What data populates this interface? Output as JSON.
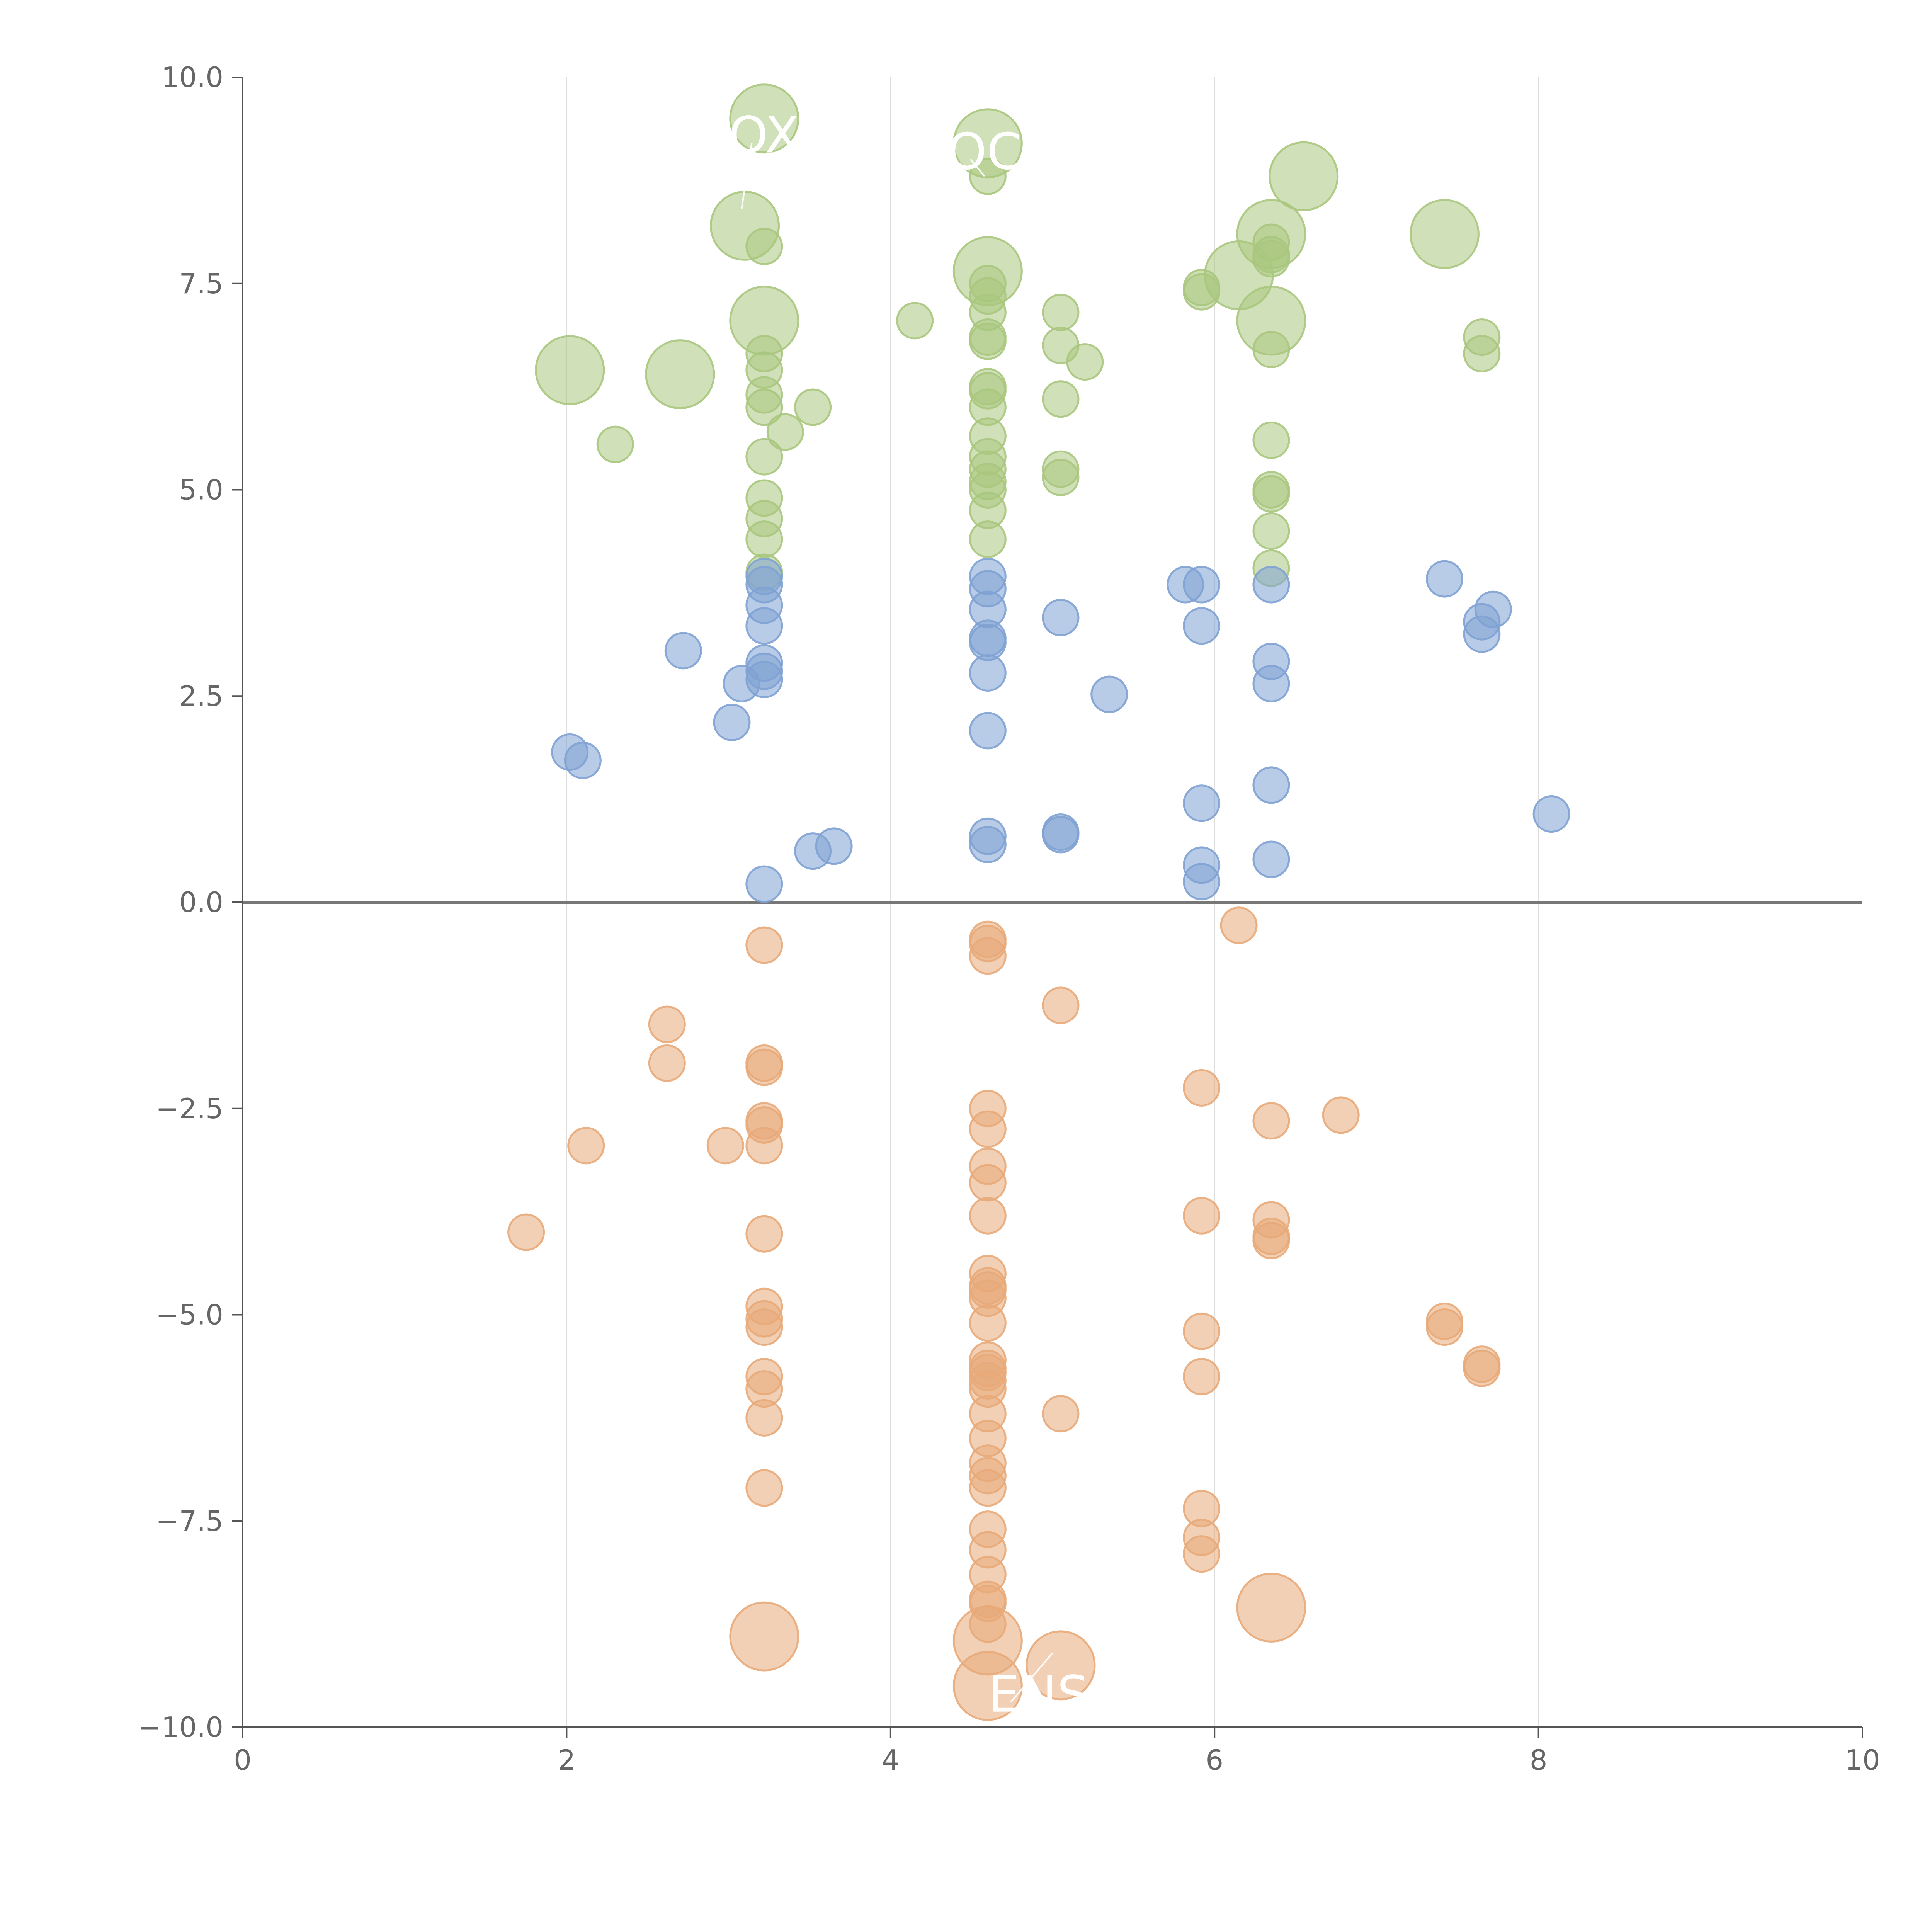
{
  "chart_data": {
    "type": "scatter",
    "title": "",
    "xlabel": "",
    "ylabel": "",
    "xlim": [
      0,
      10
    ],
    "ylim": [
      -10,
      10
    ],
    "x_ticks": [
      0,
      2,
      4,
      6,
      8,
      10
    ],
    "x_tick_labels": [
      "0",
      "2",
      "4",
      "6",
      "8",
      "10"
    ],
    "y_ticks": [
      -10,
      -7.5,
      -5,
      -2.5,
      0,
      2.5,
      5,
      7.5,
      10
    ],
    "y_tick_labels": [
      "−10.0",
      "−7.5",
      "−5.0",
      "−2.5",
      "0.0",
      "2.5",
      "5.0",
      "7.5",
      "10.0"
    ],
    "grid": "vertical",
    "baseline_y": 0,
    "series": [
      {
        "color": "#a9c77e",
        "points": [
          [
            2.02,
            6.45,
            1
          ],
          [
            2.7,
            6.4,
            1
          ],
          [
            3.1,
            8.2,
            1
          ],
          [
            3.22,
            9.5,
            1
          ],
          [
            3.22,
            7.05,
            1
          ],
          [
            4.6,
            9.2,
            1
          ],
          [
            4.6,
            7.65,
            1
          ],
          [
            6.15,
            7.6,
            1
          ],
          [
            6.35,
            8.1,
            1
          ],
          [
            6.35,
            7.05,
            1
          ],
          [
            6.55,
            8.8,
            1
          ],
          [
            7.42,
            8.1,
            1
          ],
          [
            2.3,
            5.55,
            0
          ],
          [
            3.22,
            7.95,
            0
          ],
          [
            3.22,
            6.65,
            0
          ],
          [
            3.22,
            6.45,
            0
          ],
          [
            3.22,
            6.15,
            0
          ],
          [
            3.22,
            6.0,
            0
          ],
          [
            3.22,
            5.4,
            0
          ],
          [
            3.22,
            4.9,
            0
          ],
          [
            3.22,
            4.65,
            0
          ],
          [
            3.22,
            4.4,
            0
          ],
          [
            3.22,
            4.0,
            0
          ],
          [
            3.35,
            5.7,
            0
          ],
          [
            3.52,
            6.0,
            0
          ],
          [
            4.15,
            7.05,
            0
          ],
          [
            4.6,
            8.8,
            0
          ],
          [
            4.6,
            7.5,
            0
          ],
          [
            4.6,
            7.35,
            0
          ],
          [
            4.6,
            7.15,
            0
          ],
          [
            4.6,
            6.85,
            0
          ],
          [
            4.6,
            6.8,
            0
          ],
          [
            4.6,
            6.25,
            0
          ],
          [
            4.6,
            6.2,
            0
          ],
          [
            4.6,
            6.0,
            0
          ],
          [
            4.6,
            5.65,
            0
          ],
          [
            4.6,
            5.4,
            0
          ],
          [
            4.6,
            5.25,
            0
          ],
          [
            4.6,
            5.1,
            0
          ],
          [
            4.6,
            5.0,
            0
          ],
          [
            4.6,
            4.75,
            0
          ],
          [
            4.6,
            4.4,
            0
          ],
          [
            5.05,
            7.15,
            0
          ],
          [
            5.05,
            6.75,
            0
          ],
          [
            5.05,
            6.1,
            0
          ],
          [
            5.05,
            5.25,
            0
          ],
          [
            5.05,
            5.15,
            0
          ],
          [
            5.2,
            6.55,
            0
          ],
          [
            5.92,
            7.45,
            0
          ],
          [
            5.92,
            7.4,
            0
          ],
          [
            6.35,
            8.0,
            0
          ],
          [
            6.35,
            7.85,
            0
          ],
          [
            6.35,
            7.8,
            0
          ],
          [
            6.35,
            6.7,
            0
          ],
          [
            6.35,
            5.6,
            0
          ],
          [
            6.35,
            5.0,
            0
          ],
          [
            6.35,
            4.95,
            0
          ],
          [
            6.35,
            4.5,
            0
          ],
          [
            6.35,
            4.05,
            0
          ],
          [
            7.65,
            6.85,
            0
          ],
          [
            7.65,
            6.65,
            0
          ]
        ]
      },
      {
        "color": "#7fa2d3",
        "points": [
          [
            2.02,
            1.82,
            0
          ],
          [
            2.1,
            1.72,
            0
          ],
          [
            2.72,
            3.05,
            0
          ],
          [
            3.02,
            2.18,
            0
          ],
          [
            3.08,
            2.65,
            0
          ],
          [
            3.22,
            3.95,
            0
          ],
          [
            3.22,
            3.85,
            0
          ],
          [
            3.22,
            3.6,
            0
          ],
          [
            3.22,
            3.35,
            0
          ],
          [
            3.22,
            2.9,
            0
          ],
          [
            3.22,
            2.8,
            0
          ],
          [
            3.22,
            2.7,
            0
          ],
          [
            3.22,
            0.22,
            0
          ],
          [
            3.52,
            0.62,
            0
          ],
          [
            3.65,
            0.68,
            0
          ],
          [
            4.6,
            3.95,
            0
          ],
          [
            4.6,
            3.8,
            0
          ],
          [
            4.6,
            3.55,
            0
          ],
          [
            4.6,
            3.2,
            0
          ],
          [
            4.6,
            3.15,
            0
          ],
          [
            4.6,
            2.78,
            0
          ],
          [
            4.6,
            2.08,
            0
          ],
          [
            4.6,
            0.8,
            0
          ],
          [
            4.6,
            0.7,
            0
          ],
          [
            5.05,
            3.45,
            0
          ],
          [
            5.05,
            0.85,
            0
          ],
          [
            5.05,
            0.82,
            0
          ],
          [
            5.35,
            2.52,
            0
          ],
          [
            5.82,
            3.85,
            0
          ],
          [
            5.92,
            3.85,
            0
          ],
          [
            5.92,
            3.35,
            0
          ],
          [
            5.92,
            1.2,
            0
          ],
          [
            5.92,
            0.45,
            0
          ],
          [
            5.92,
            0.25,
            0
          ],
          [
            6.35,
            3.85,
            0
          ],
          [
            6.35,
            2.92,
            0
          ],
          [
            6.35,
            2.65,
            0
          ],
          [
            6.35,
            1.42,
            0
          ],
          [
            6.35,
            0.52,
            0
          ],
          [
            7.42,
            3.92,
            0
          ],
          [
            7.65,
            3.4,
            0
          ],
          [
            7.65,
            3.25,
            0
          ],
          [
            7.72,
            3.55,
            0
          ],
          [
            8.08,
            1.07,
            0
          ]
        ]
      },
      {
        "color": "#e8aa79",
        "points": [
          [
            3.22,
            -8.9,
            1
          ],
          [
            4.6,
            -8.95,
            1
          ],
          [
            4.6,
            -9.5,
            1
          ],
          [
            5.05,
            -9.25,
            1
          ],
          [
            6.35,
            -8.55,
            1
          ],
          [
            1.75,
            -4.0,
            0
          ],
          [
            2.12,
            -2.95,
            0
          ],
          [
            2.62,
            -1.48,
            0
          ],
          [
            2.62,
            -1.95,
            0
          ],
          [
            2.98,
            -2.95,
            0
          ],
          [
            3.22,
            -0.52,
            0
          ],
          [
            3.22,
            -1.95,
            0
          ],
          [
            3.22,
            -2.0,
            0
          ],
          [
            3.22,
            -2.65,
            0
          ],
          [
            3.22,
            -2.7,
            0
          ],
          [
            3.22,
            -2.95,
            0
          ],
          [
            3.22,
            -4.02,
            0
          ],
          [
            3.22,
            -4.9,
            0
          ],
          [
            3.22,
            -5.05,
            0
          ],
          [
            3.22,
            -5.15,
            0
          ],
          [
            3.22,
            -5.75,
            0
          ],
          [
            3.22,
            -5.9,
            0
          ],
          [
            3.22,
            -6.25,
            0
          ],
          [
            3.22,
            -7.1,
            0
          ],
          [
            4.6,
            -0.45,
            0
          ],
          [
            4.6,
            -0.5,
            0
          ],
          [
            4.6,
            -0.65,
            0
          ],
          [
            4.6,
            -2.5,
            0
          ],
          [
            4.6,
            -2.75,
            0
          ],
          [
            4.6,
            -3.2,
            0
          ],
          [
            4.6,
            -3.4,
            0
          ],
          [
            4.6,
            -3.8,
            0
          ],
          [
            4.6,
            -4.5,
            0
          ],
          [
            4.6,
            -4.65,
            0
          ],
          [
            4.6,
            -4.7,
            0
          ],
          [
            4.6,
            -4.8,
            0
          ],
          [
            4.6,
            -5.1,
            0
          ],
          [
            4.6,
            -5.55,
            0
          ],
          [
            4.6,
            -5.65,
            0
          ],
          [
            4.6,
            -5.7,
            0
          ],
          [
            4.6,
            -5.8,
            0
          ],
          [
            4.6,
            -5.9,
            0
          ],
          [
            4.6,
            -6.2,
            0
          ],
          [
            4.6,
            -6.5,
            0
          ],
          [
            4.6,
            -6.8,
            0
          ],
          [
            4.6,
            -6.95,
            0
          ],
          [
            4.6,
            -7.1,
            0
          ],
          [
            4.6,
            -7.6,
            0
          ],
          [
            4.6,
            -7.85,
            0
          ],
          [
            4.6,
            -8.15,
            0
          ],
          [
            4.6,
            -8.45,
            0
          ],
          [
            4.6,
            -8.5,
            0
          ],
          [
            4.6,
            -8.75,
            0
          ],
          [
            5.05,
            -1.25,
            0
          ],
          [
            5.05,
            -6.2,
            0
          ],
          [
            5.92,
            -2.25,
            0
          ],
          [
            5.92,
            -3.8,
            0
          ],
          [
            5.92,
            -5.2,
            0
          ],
          [
            5.92,
            -5.75,
            0
          ],
          [
            5.92,
            -7.35,
            0
          ],
          [
            5.92,
            -7.7,
            0
          ],
          [
            5.92,
            -7.9,
            0
          ],
          [
            6.15,
            -0.28,
            0
          ],
          [
            6.35,
            -2.65,
            0
          ],
          [
            6.35,
            -3.85,
            0
          ],
          [
            6.35,
            -4.05,
            0
          ],
          [
            6.35,
            -4.1,
            0
          ],
          [
            6.78,
            -2.58,
            0
          ],
          [
            7.42,
            -5.08,
            0
          ],
          [
            7.42,
            -5.15,
            0
          ],
          [
            7.65,
            -5.6,
            0
          ],
          [
            7.65,
            -5.65,
            0
          ]
        ]
      }
    ],
    "annotations": [
      {
        "text": "OX",
        "x": 3.0,
        "y": 9.3,
        "lx": 3.08,
        "ly": 8.4,
        "color": "#ffffff"
      },
      {
        "text": "OC",
        "x": 4.35,
        "y": 9.1,
        "lx": 4.58,
        "ly": 8.8,
        "color": "#ffffff"
      },
      {
        "text": "ENS",
        "x": 4.6,
        "y": -9.6,
        "lx": 5.0,
        "ly": -9.1,
        "color": "#ffffff"
      }
    ]
  }
}
